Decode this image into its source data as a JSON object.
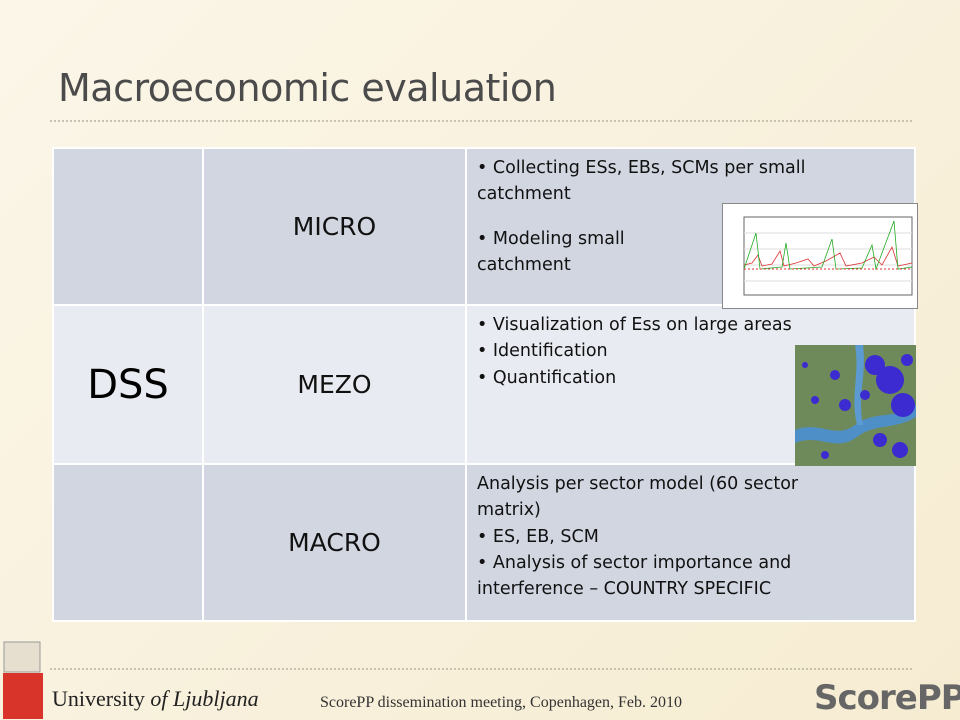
{
  "title": "Macroeconomic evaluation",
  "table": {
    "merged_label": "DSS",
    "rows": [
      {
        "level": "MICRO",
        "intro": null,
        "items": [
          "Collecting ESs, EBs, SCMs per small catchment",
          "Modeling small catchment"
        ]
      },
      {
        "level": "MEZO",
        "intro": null,
        "items": [
          "Visualization of Ess on large areas",
          "Identification",
          "Quantification"
        ]
      },
      {
        "level": "MACRO",
        "intro": "Analysis per sector model (60 sector matrix)",
        "items": [
          "ES, EB, SCM",
          "Analysis of sector importance and interference – COUNTRY SPECIFIC"
        ]
      }
    ]
  },
  "footer": {
    "university": "University",
    "university_name": "of Ljubljana",
    "event": "ScorePP dissemination meeting, Copenhagen, Feb. 2010",
    "logo": "ScorePP"
  }
}
